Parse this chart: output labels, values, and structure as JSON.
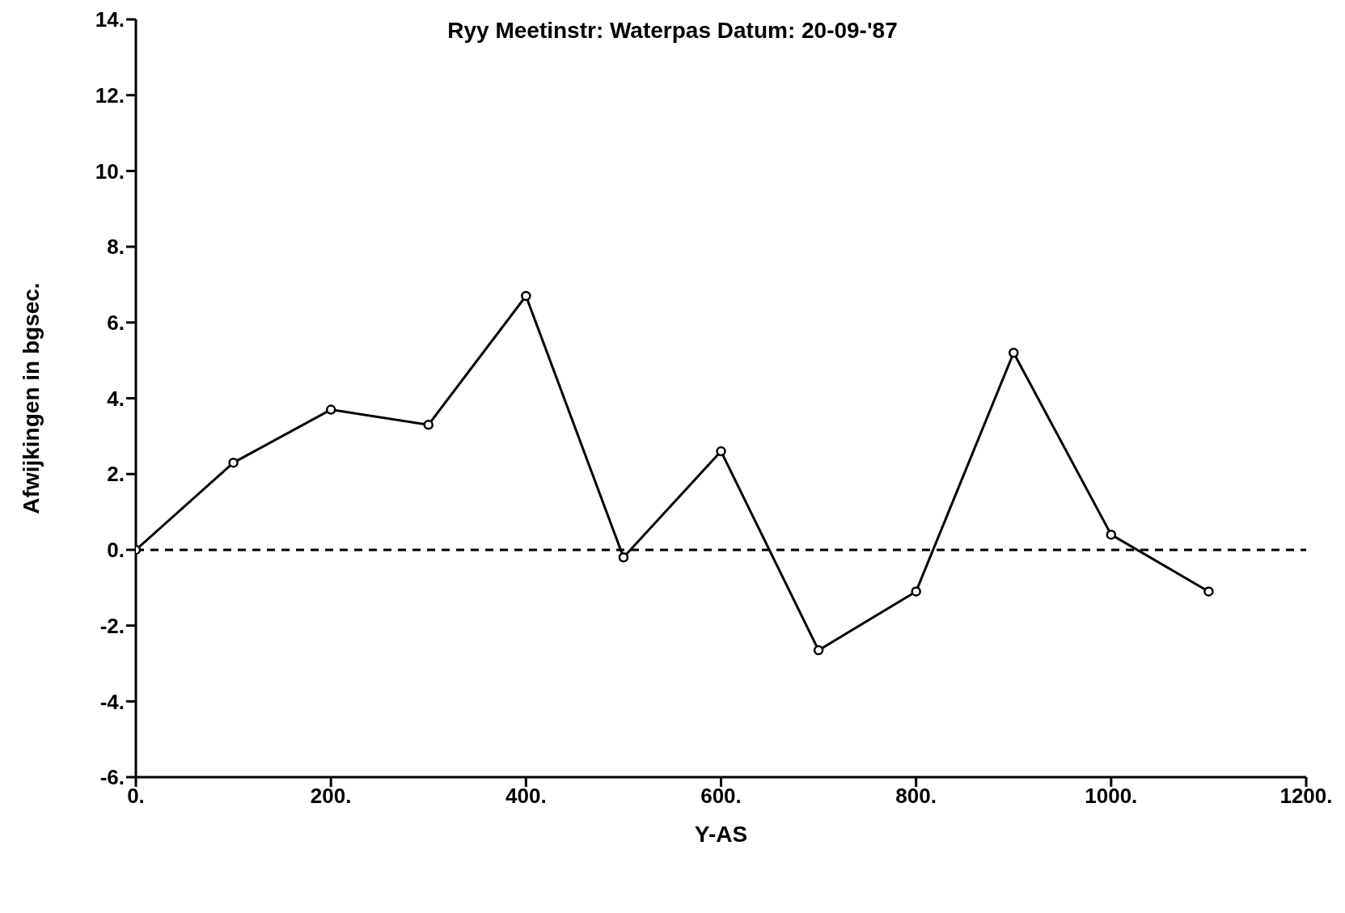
{
  "chart_data": {
    "type": "line",
    "subtitle": "Ryy   Meetinstr: Waterpas   Datum: 20-09-'87",
    "xlabel": "Y-AS",
    "ylabel": "Afwijkingen in bgsec.",
    "x": [
      0,
      100,
      200,
      300,
      400,
      500,
      600,
      700,
      800,
      900,
      1000,
      1100
    ],
    "series": [
      {
        "color": "#000000",
        "values": [
          0,
          2.3,
          3.7,
          3.3,
          6.7,
          -0.2,
          2.6,
          -2.65,
          -1.1,
          5.2,
          0.4,
          -1.1
        ]
      }
    ],
    "xlim": [
      0,
      1200
    ],
    "xticks": [
      {
        "value": 0,
        "label": "0."
      },
      {
        "value": 200,
        "label": "200."
      },
      {
        "value": 400,
        "label": "400."
      },
      {
        "value": 600,
        "label": "600."
      },
      {
        "value": 800,
        "label": "800."
      },
      {
        "value": 1000,
        "label": "1000."
      },
      {
        "value": 1200,
        "label": "1200."
      }
    ],
    "ylim": [
      -6,
      14
    ],
    "yticks": [
      {
        "value": -6,
        "label": "-6."
      },
      {
        "value": -4,
        "label": "-4."
      },
      {
        "value": -2,
        "label": "-2."
      },
      {
        "value": 0,
        "label": "0."
      },
      {
        "value": 2,
        "label": "2."
      },
      {
        "value": 4,
        "label": "4."
      },
      {
        "value": 6,
        "label": "6."
      },
      {
        "value": 8,
        "label": "8."
      },
      {
        "value": 10,
        "label": "10."
      },
      {
        "value": 12,
        "label": "12."
      },
      {
        "value": 14,
        "label": "14."
      }
    ],
    "ref_lines": [
      {
        "axis": "y",
        "value": 0,
        "color": "#000000",
        "line_style": "dashed"
      }
    ],
    "marker": "circle",
    "line_style": "solid",
    "grid": false,
    "legend": false
  }
}
